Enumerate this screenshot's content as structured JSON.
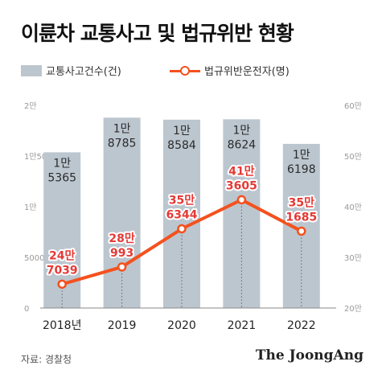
{
  "title": "이륜차 교통사고 및 법규위반 현황",
  "legend": {
    "accidents": "교통사고건수(건)",
    "violations": "법규위반운전자(명)"
  },
  "colors": {
    "bar": "#bcc6cf",
    "line": "#f4511e",
    "lineLabel": "#e53935",
    "barLabel": "#2b2b2b"
  },
  "chart_data": {
    "type": "bar",
    "categories": [
      "2018년",
      "2019",
      "2020",
      "2021",
      "2022"
    ],
    "left_axis": {
      "ticks": [
        "0",
        "5000",
        "1만",
        "1만5000",
        "2만"
      ],
      "range": [
        0,
        20000
      ]
    },
    "right_axis": {
      "ticks": [
        "20만",
        "30만",
        "40만",
        "50만",
        "60만"
      ],
      "range": [
        200000,
        600000
      ]
    },
    "series": [
      {
        "name": "교통사고건수(건)",
        "type": "bar",
        "axis": "left",
        "values": [
          15365,
          18785,
          18584,
          18624,
          16198
        ],
        "labels": [
          [
            "1만",
            "5365"
          ],
          [
            "1만",
            "8785"
          ],
          [
            "1만",
            "8584"
          ],
          [
            "1만",
            "8624"
          ],
          [
            "1만",
            "6198"
          ]
        ]
      },
      {
        "name": "법규위반운전자(명)",
        "type": "line",
        "axis": "right",
        "values": [
          247039,
          280993,
          356344,
          413605,
          351685
        ],
        "labels": [
          [
            "24만",
            "7039"
          ],
          [
            "28만",
            "993"
          ],
          [
            "35만",
            "6344"
          ],
          [
            "41만",
            "3605"
          ],
          [
            "35만",
            "1685"
          ]
        ]
      }
    ]
  },
  "footer": {
    "source": "자료: 경찰청",
    "brand": "The JoongAng"
  }
}
